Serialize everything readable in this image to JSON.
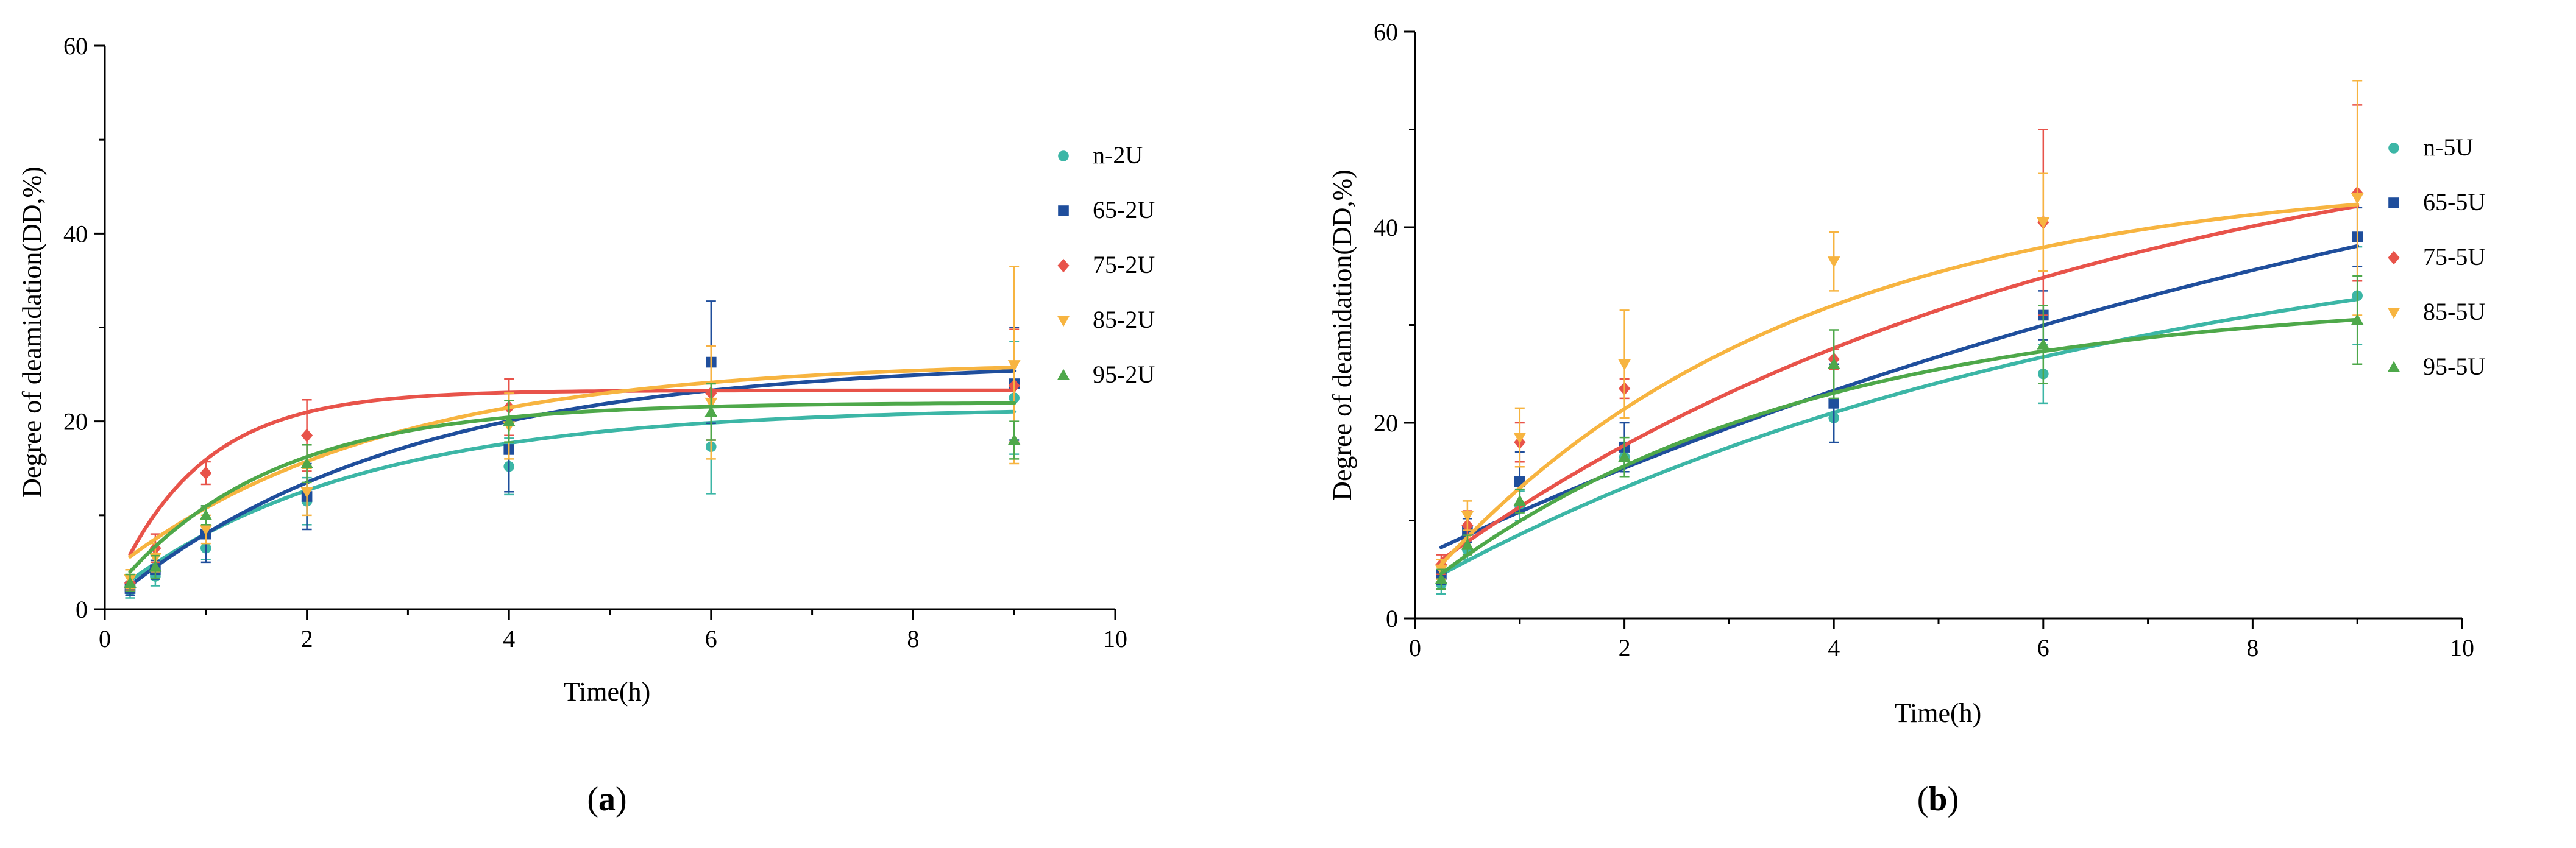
{
  "chart_data": [
    {
      "type": "scatter",
      "panel_label": "a",
      "title": "",
      "xlabel": "Time(h)",
      "ylabel": "Degree of deamidation(DD,%)",
      "xlim": [
        0,
        10
      ],
      "ylim": [
        0,
        60
      ],
      "xticks": [
        0,
        2,
        4,
        6,
        8,
        10
      ],
      "yticks": [
        0,
        20,
        40,
        60
      ],
      "legend_position": "right",
      "x": [
        0.25,
        0.5,
        1,
        2,
        4,
        6,
        9
      ],
      "series": [
        {
          "name": "n-2U",
          "color": "#3cb6a6",
          "marker": "circle",
          "values": [
            2.0,
            3.5,
            6.5,
            11.5,
            15.2,
            17.3,
            22.5
          ],
          "errors": [
            0.8,
            1.0,
            1.2,
            2.5,
            3.0,
            5.0,
            6.0
          ],
          "fit_plateau": 21.5,
          "fit_k": 0.42,
          "fit_y0": 1.0
        },
        {
          "name": "65-2U",
          "color": "#1f4e9c",
          "marker": "square",
          "values": [
            2.2,
            4.2,
            8.0,
            12.0,
            17.0,
            26.3,
            24.0
          ],
          "errors": [
            0.7,
            1.0,
            3.0,
            3.5,
            4.5,
            6.5,
            6.0
          ],
          "fit_plateau": 26.5,
          "fit_k": 0.35,
          "fit_y0": 0.3
        },
        {
          "name": "75-2U",
          "color": "#e8534a",
          "marker": "diamond",
          "values": [
            2.8,
            6.5,
            14.5,
            18.5,
            21.5,
            23.0,
            23.8
          ],
          "errors": [
            0.8,
            1.5,
            1.2,
            3.8,
            3.0,
            5.0,
            6.0
          ],
          "fit_plateau": 23.3,
          "fit_k": 1.15,
          "fit_y0": 0.0
        },
        {
          "name": "85-2U",
          "color": "#f7b440",
          "marker": "triangle-down",
          "values": [
            3.2,
            5.5,
            8.5,
            12.5,
            19.5,
            22.0,
            26.0
          ],
          "errors": [
            1.0,
            1.5,
            1.5,
            2.5,
            3.5,
            6.0,
            10.5
          ],
          "fit_plateau": 26.5,
          "fit_k": 0.38,
          "fit_y0": 3.5
        },
        {
          "name": "95-2U",
          "color": "#4ea84a",
          "marker": "triangle-up",
          "values": [
            2.8,
            4.5,
            10.0,
            15.5,
            20.0,
            21.0,
            18.0
          ],
          "errors": [
            0.9,
            1.2,
            1.0,
            2.0,
            2.2,
            3.0,
            2.0
          ],
          "fit_plateau": 22.0,
          "fit_k": 0.65,
          "fit_y0": 0.8
        }
      ]
    },
    {
      "type": "scatter",
      "panel_label": "b",
      "title": "",
      "xlabel": "Time(h)",
      "ylabel": "Degree of deamidation(DD,%)",
      "xlim": [
        0,
        10
      ],
      "ylim": [
        0,
        60
      ],
      "xticks": [
        0,
        2,
        4,
        6,
        8,
        10
      ],
      "yticks": [
        0,
        20,
        40,
        60
      ],
      "legend_position": "right",
      "x": [
        0.25,
        0.5,
        1,
        2,
        4,
        6,
        9
      ],
      "series": [
        {
          "name": "n-5U",
          "color": "#3cb6a6",
          "marker": "circle",
          "values": [
            3.5,
            7.0,
            11.5,
            16.5,
            20.5,
            25.0,
            33.0
          ],
          "errors": [
            1.0,
            1.0,
            1.5,
            1.5,
            2.5,
            3.0,
            5.0
          ],
          "fit_plateau": 43.0,
          "fit_k": 0.15,
          "fit_y0": 3.0
        },
        {
          "name": "65-5U",
          "color": "#1f4e9c",
          "marker": "square",
          "values": [
            4.5,
            9.0,
            14.0,
            17.5,
            22.0,
            31.0,
            39.0
          ],
          "errors": [
            1.0,
            1.2,
            3.0,
            2.5,
            4.0,
            2.5,
            3.0
          ],
          "fit_plateau": 66.0,
          "fit_k": 0.085,
          "fit_y0": 6.0
        },
        {
          "name": "75-5U",
          "color": "#e8534a",
          "marker": "diamond",
          "values": [
            5.5,
            9.5,
            18.0,
            23.5,
            26.5,
            40.5,
            43.5
          ],
          "errors": [
            1.0,
            1.5,
            2.0,
            1.0,
            1.0,
            9.5,
            9.0
          ],
          "fit_plateau": 54.0,
          "fit_k": 0.16,
          "fit_y0": 4.0
        },
        {
          "name": "85-5U",
          "color": "#f7b440",
          "marker": "triangle-down",
          "values": [
            5.0,
            10.5,
            18.5,
            26.0,
            36.5,
            40.5,
            43.0
          ],
          "errors": [
            1.0,
            1.5,
            3.0,
            5.5,
            3.0,
            5.0,
            12.0
          ],
          "fit_plateau": 45.5,
          "fit_k": 0.29,
          "fit_y0": 2.5
        },
        {
          "name": "95-5U",
          "color": "#4ea84a",
          "marker": "triangle-up",
          "values": [
            4.0,
            7.5,
            12.0,
            16.5,
            26.0,
            28.0,
            30.5
          ],
          "errors": [
            1.0,
            1.0,
            1.2,
            2.0,
            3.5,
            4.0,
            4.5
          ],
          "fit_plateau": 33.0,
          "fit_k": 0.28,
          "fit_y0": 2.5
        }
      ]
    }
  ]
}
